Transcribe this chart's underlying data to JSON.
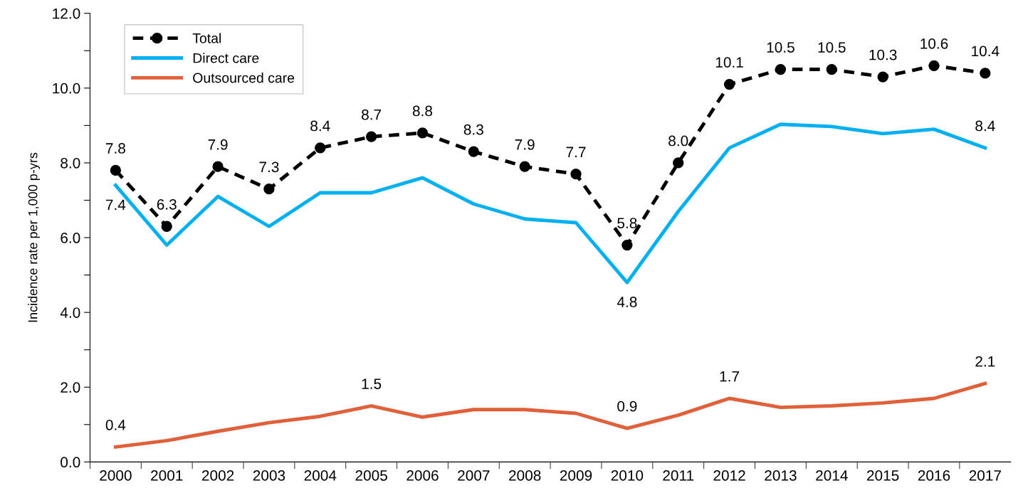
{
  "chart_data": {
    "type": "line",
    "ylabel": "Incidence rate per 1,000 p-yrs",
    "categories": [
      "2000",
      "2001",
      "2002",
      "2003",
      "2004",
      "2005",
      "2006",
      "2007",
      "2008",
      "2009",
      "2010",
      "2011",
      "2012",
      "2013",
      "2014",
      "2015",
      "2016",
      "2017"
    ],
    "series": [
      {
        "name": "Total",
        "color": "#000000",
        "marker": "circle",
        "line_style": "dashed",
        "values": [
          7.8,
          6.3,
          7.9,
          7.3,
          8.4,
          8.7,
          8.8,
          8.3,
          7.9,
          7.7,
          5.8,
          8.0,
          10.1,
          10.5,
          10.5,
          10.3,
          10.6,
          10.4
        ],
        "value_labels": [
          "7.8",
          "6.3",
          "7.9",
          "7.3",
          "8.4",
          "8.7",
          "8.8",
          "8.3",
          "7.9",
          "7.7",
          "5.8",
          "8.0",
          "10.1",
          "10.5",
          "10.5",
          "10.3",
          "10.6",
          "10.4"
        ]
      },
      {
        "name": "Direct care",
        "color": "#00b0f0",
        "marker": "none",
        "line_style": "solid",
        "values": [
          7.4,
          5.8,
          7.1,
          6.3,
          7.2,
          7.2,
          7.6,
          6.9,
          6.5,
          6.4,
          4.8,
          6.7,
          8.4,
          9.03,
          8.97,
          8.78,
          8.9,
          8.4
        ],
        "value_labels": [
          "7.4",
          null,
          null,
          null,
          null,
          null,
          null,
          null,
          null,
          null,
          "4.8",
          null,
          null,
          null,
          null,
          null,
          null,
          "8.4"
        ]
      },
      {
        "name": "Outsourced care",
        "color": "#e0603a",
        "marker": "none",
        "line_style": "solid",
        "values": [
          0.4,
          0.57,
          0.82,
          1.05,
          1.22,
          1.5,
          1.2,
          1.4,
          1.4,
          1.3,
          0.9,
          1.25,
          1.7,
          1.46,
          1.5,
          1.58,
          1.7,
          2.1
        ],
        "value_labels": [
          "0.4",
          null,
          null,
          null,
          null,
          "1.5",
          null,
          null,
          null,
          null,
          "0.9",
          null,
          "1.7",
          null,
          null,
          null,
          null,
          "2.1"
        ]
      }
    ],
    "ylim": [
      0,
      12
    ],
    "yticks": [
      {
        "value": 0,
        "label": "0.0"
      },
      {
        "value": 1,
        "label": null
      },
      {
        "value": 2,
        "label": "2.0"
      },
      {
        "value": 3,
        "label": null
      },
      {
        "value": 4,
        "label": "4.0"
      },
      {
        "value": 5,
        "label": null
      },
      {
        "value": 6,
        "label": "6.0"
      },
      {
        "value": 7,
        "label": null
      },
      {
        "value": 8,
        "label": "8.0"
      },
      {
        "value": 9,
        "label": null
      },
      {
        "value": 10,
        "label": "10.0"
      },
      {
        "value": 11,
        "label": null
      },
      {
        "value": 12,
        "label": "12.0"
      }
    ],
    "grid": false,
    "legend": "top left"
  }
}
